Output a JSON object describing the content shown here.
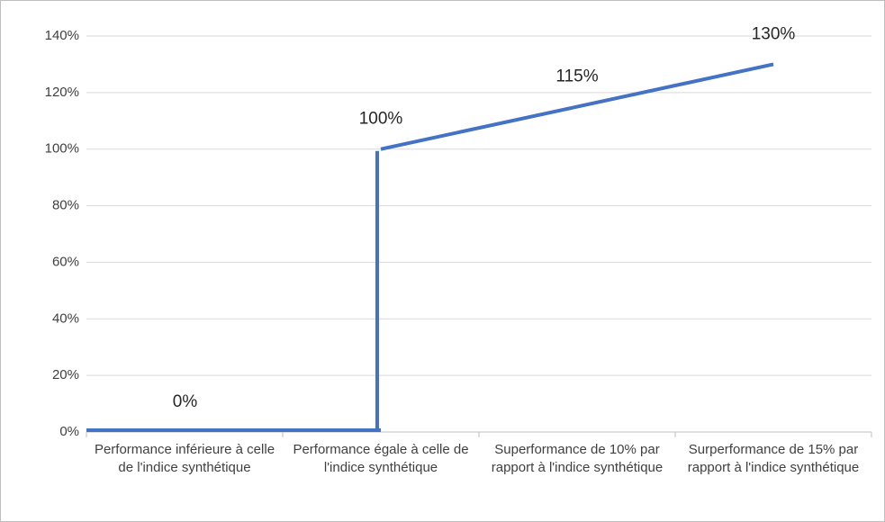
{
  "chart_data": {
    "type": "line",
    "categories": [
      "Performance inférieure à celle de l'indice synthétique",
      "Performance égale à celle de l'indice synthétique",
      "Superformance de 10% par rapport à l'indice synthétique",
      "Surperformance de 15% par rapport à l'indice synthétique"
    ],
    "series": [
      {
        "color": "#4472c4",
        "values": [
          0,
          100,
          115,
          130
        ],
        "value_labels": [
          "0%",
          "100%",
          "115%",
          "130%"
        ]
      }
    ],
    "ylim": [
      0,
      140
    ],
    "yticks": [
      {
        "value": 0,
        "label": "0%"
      },
      {
        "value": 20,
        "label": "20%"
      },
      {
        "value": 40,
        "label": "40%"
      },
      {
        "value": 60,
        "label": "60%"
      },
      {
        "value": 80,
        "label": "80%"
      },
      {
        "value": 100,
        "label": "100%"
      },
      {
        "value": 120,
        "label": "120%"
      },
      {
        "value": 140,
        "label": "140%"
      }
    ],
    "grid": true
  }
}
